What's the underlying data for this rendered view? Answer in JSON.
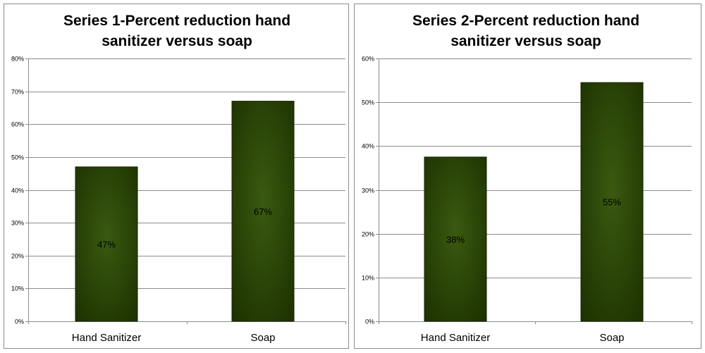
{
  "colors": {
    "bar_dark": "#1c3000",
    "bar_light": "#3a5a10",
    "gridline": "#8c8c8c",
    "panel_border": "#8c8c8c"
  },
  "chart_data": [
    {
      "type": "bar",
      "title": "Series 1-Percent reduction hand sanitizer versus soap",
      "title_lines": [
        "Series 1-Percent reduction hand",
        "sanitizer versus soap"
      ],
      "categories": [
        "Hand Sanitizer",
        "Soap"
      ],
      "values": [
        47,
        67
      ],
      "data_labels": [
        "47%",
        "67%"
      ],
      "ylim": [
        0,
        80
      ],
      "y_ticks": [
        0,
        10,
        20,
        30,
        40,
        50,
        60,
        70,
        80
      ],
      "y_tick_labels": [
        "0%",
        "10%",
        "20%",
        "30%",
        "40%",
        "50%",
        "60%",
        "70%",
        "80%"
      ],
      "grid": true,
      "legend": "none"
    },
    {
      "type": "bar",
      "title": "Series 2-Percent reduction hand sanitizer versus soap",
      "title_lines": [
        "Series 2-Percent reduction hand",
        "sanitizer versus soap"
      ],
      "categories": [
        "Hand Sanitizer",
        "Soap"
      ],
      "values": [
        37.5,
        54.5
      ],
      "data_labels": [
        "38%",
        "55%"
      ],
      "ylim": [
        0,
        60
      ],
      "y_ticks": [
        0,
        10,
        20,
        30,
        40,
        50,
        60
      ],
      "y_tick_labels": [
        "0%",
        "10%",
        "20%",
        "30%",
        "40%",
        "50%",
        "60%"
      ],
      "grid": true,
      "legend": "none"
    }
  ]
}
